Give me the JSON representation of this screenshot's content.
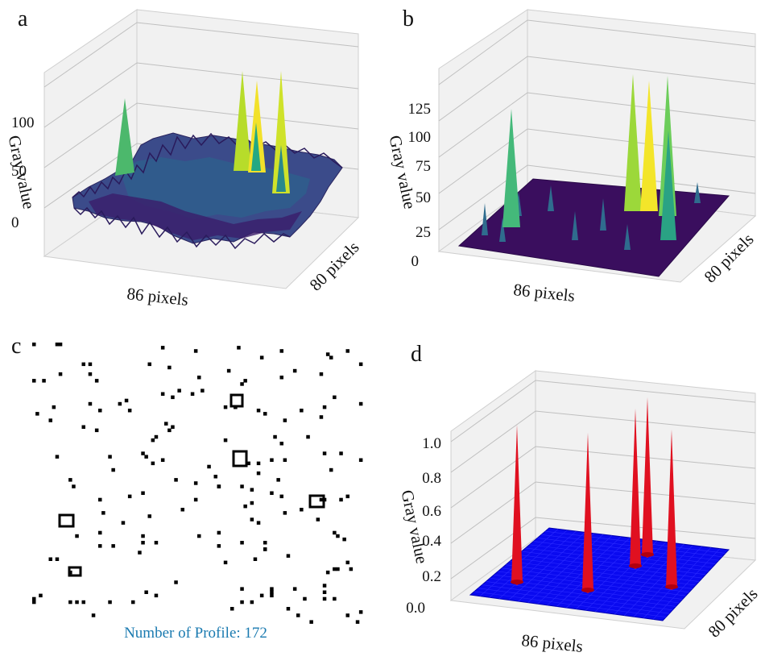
{
  "chart_data": [
    {
      "panel": "a",
      "type": "surface3d",
      "colormap": "viridis",
      "xlabel": "86 pixels",
      "ylabel": "80 pixels",
      "zlabel": "Gray value",
      "zticks": [
        "0",
        "50",
        "100"
      ],
      "peaks_gray_value": [
        95,
        128,
        112,
        118,
        118
      ]
    },
    {
      "panel": "b",
      "type": "surface3d",
      "colormap": "viridis",
      "xlabel": "86 pixels",
      "ylabel": "80 pixels",
      "zlabel": "Gray value",
      "zticks": [
        "0",
        "25",
        "50",
        "75",
        "100",
        "125"
      ],
      "peaks_gray_value": [
        122,
        148,
        140,
        132,
        118
      ]
    },
    {
      "panel": "c",
      "type": "binary-map",
      "caption": "Number of Profile: 172",
      "profile_count": 172
    },
    {
      "panel": "d",
      "type": "surface3d",
      "surface_color": "#0a0af0",
      "peak_color": "#e01020",
      "xlabel": "86 pixels",
      "ylabel": "80 pixels",
      "zlabel": "Gray value",
      "zticks": [
        "0.0",
        "0.2",
        "0.4",
        "0.6",
        "0.8",
        "1.0"
      ],
      "peaks_gray_value": [
        1.0,
        1.0,
        1.0,
        1.0,
        1.0
      ]
    }
  ]
}
